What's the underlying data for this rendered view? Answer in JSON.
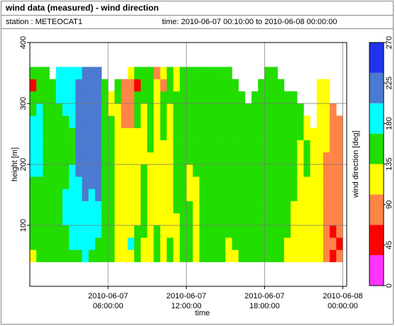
{
  "header": {
    "title": "wind data (measured) - wind direction",
    "station": "station : METEOCAT1",
    "time": "time: 2010-06-07 00:10:00 to 2010-06-08 00:00:00"
  },
  "chart_data": {
    "type": "heatmap",
    "xlabel": "time",
    "ylabel": "height [m]",
    "xlim": [
      0,
      24.3
    ],
    "ylim": [
      0,
      400
    ],
    "xticks": [
      {
        "value": 6,
        "label": [
          "2010-06-07",
          "06:00:00"
        ]
      },
      {
        "value": 12,
        "label": [
          "2010-06-07",
          "12:00:00"
        ]
      },
      {
        "value": 18,
        "label": [
          "2010-06-07",
          "18:00:00"
        ]
      },
      {
        "value": 24,
        "label": [
          "2010-06-08",
          "00:00:00"
        ]
      }
    ],
    "yticks": [
      100,
      200,
      300,
      400
    ],
    "grid": true,
    "x": [
      0,
      0.5,
      1,
      1.5,
      2,
      2.5,
      3,
      3.5,
      4,
      4.5,
      5,
      5.5,
      6,
      6.5,
      7,
      7.5,
      8,
      8.5,
      9,
      9.5,
      10,
      10.5,
      11,
      11.5,
      12,
      12.5,
      13,
      13.5,
      14,
      14.5,
      15,
      15.5,
      16,
      16.5,
      17,
      17.5,
      18,
      18.5,
      19,
      19.5,
      20,
      20.5,
      21,
      21.5,
      22,
      22.5,
      23,
      23.5
    ],
    "y": [
      40,
      60,
      80,
      100,
      120,
      140,
      160,
      180,
      200,
      220,
      240,
      260,
      280,
      300,
      320,
      340
    ],
    "z": [
      [
        120,
        150,
        150,
        150,
        150,
        150,
        150,
        190,
        190,
        190,
        190,
        190,
        150,
        150,
        50,
        150
      ],
      [
        150,
        150,
        150,
        150,
        150,
        150,
        150,
        190,
        190,
        190,
        190,
        190,
        190,
        150,
        150,
        150
      ],
      [
        150,
        150,
        150,
        150,
        150,
        150,
        150,
        150,
        150,
        150,
        150,
        150,
        150,
        150,
        150,
        150
      ],
      [
        150,
        150,
        150,
        150,
        150,
        150,
        150,
        150,
        150,
        150,
        150,
        150,
        150,
        150,
        150,
        null
      ],
      [
        150,
        150,
        150,
        150,
        150,
        150,
        150,
        150,
        150,
        150,
        150,
        150,
        150,
        190,
        190,
        190
      ],
      [
        150,
        150,
        150,
        190,
        190,
        190,
        150,
        150,
        150,
        150,
        150,
        150,
        190,
        190,
        190,
        190
      ],
      [
        150,
        190,
        190,
        190,
        190,
        190,
        190,
        190,
        150,
        150,
        150,
        190,
        190,
        190,
        190,
        190
      ],
      [
        150,
        190,
        190,
        190,
        190,
        190,
        190,
        220,
        220,
        220,
        220,
        220,
        220,
        220,
        220,
        190
      ],
      [
        190,
        190,
        190,
        190,
        190,
        220,
        220,
        220,
        220,
        220,
        220,
        220,
        220,
        220,
        220,
        220
      ],
      [
        150,
        190,
        190,
        190,
        190,
        190,
        220,
        220,
        220,
        220,
        220,
        220,
        220,
        220,
        220,
        220
      ],
      [
        150,
        150,
        190,
        190,
        190,
        220,
        220,
        220,
        220,
        220,
        220,
        220,
        220,
        220,
        220,
        220
      ],
      [
        150,
        150,
        150,
        150,
        150,
        150,
        150,
        150,
        150,
        150,
        150,
        150,
        150,
        150,
        150,
        null
      ],
      [
        150,
        150,
        150,
        150,
        150,
        150,
        150,
        150,
        150,
        150,
        150,
        150,
        120,
        120,
        null,
        null
      ],
      [
        120,
        120,
        120,
        120,
        120,
        120,
        120,
        120,
        120,
        120,
        120,
        120,
        120,
        150,
        150,
        null
      ],
      [
        120,
        120,
        120,
        120,
        120,
        120,
        120,
        120,
        120,
        120,
        120,
        80,
        80,
        80,
        80,
        null
      ],
      [
        120,
        190,
        120,
        120,
        120,
        120,
        120,
        120,
        120,
        120,
        120,
        80,
        80,
        80,
        80,
        120
      ],
      [
        150,
        150,
        150,
        120,
        120,
        120,
        120,
        120,
        120,
        120,
        120,
        150,
        150,
        150,
        50,
        150
      ],
      [
        120,
        120,
        150,
        150,
        150,
        150,
        150,
        150,
        120,
        120,
        120,
        120,
        120,
        150,
        150,
        150
      ],
      [
        120,
        120,
        120,
        120,
        120,
        120,
        120,
        120,
        120,
        150,
        150,
        150,
        150,
        150,
        150,
        150
      ],
      [
        150,
        150,
        150,
        120,
        120,
        120,
        120,
        120,
        120,
        120,
        120,
        120,
        120,
        120,
        120,
        80
      ],
      [
        120,
        120,
        120,
        120,
        120,
        120,
        120,
        120,
        120,
        120,
        150,
        150,
        150,
        150,
        80,
        120
      ],
      [
        150,
        150,
        120,
        120,
        120,
        120,
        120,
        120,
        120,
        120,
        120,
        120,
        120,
        150,
        150,
        150
      ],
      [
        120,
        120,
        120,
        120,
        150,
        150,
        150,
        150,
        150,
        150,
        150,
        150,
        150,
        150,
        120,
        120
      ],
      [
        150,
        150,
        150,
        150,
        150,
        150,
        150,
        150,
        150,
        150,
        150,
        150,
        150,
        150,
        150,
        150
      ],
      [
        150,
        150,
        150,
        150,
        150,
        120,
        120,
        120,
        150,
        150,
        150,
        150,
        150,
        150,
        150,
        150
      ],
      [
        120,
        120,
        120,
        120,
        120,
        120,
        120,
        150,
        150,
        150,
        150,
        150,
        150,
        150,
        150,
        150
      ],
      [
        150,
        150,
        150,
        150,
        150,
        150,
        150,
        150,
        150,
        150,
        150,
        150,
        150,
        150,
        150,
        150
      ],
      [
        150,
        150,
        150,
        150,
        150,
        150,
        150,
        150,
        150,
        150,
        150,
        150,
        150,
        150,
        150,
        150
      ],
      [
        150,
        150,
        150,
        150,
        150,
        150,
        150,
        150,
        150,
        150,
        150,
        150,
        150,
        150,
        150,
        150
      ],
      [
        150,
        150,
        150,
        150,
        150,
        150,
        150,
        150,
        150,
        150,
        150,
        150,
        150,
        150,
        150,
        150
      ],
      [
        120,
        120,
        150,
        150,
        150,
        150,
        150,
        150,
        150,
        150,
        150,
        150,
        150,
        150,
        150,
        150
      ],
      [
        120,
        150,
        150,
        150,
        150,
        150,
        150,
        150,
        150,
        150,
        150,
        150,
        150,
        150,
        150,
        null
      ],
      [
        150,
        150,
        150,
        150,
        150,
        150,
        150,
        150,
        150,
        150,
        150,
        150,
        150,
        150,
        null,
        null
      ],
      [
        150,
        150,
        150,
        150,
        150,
        150,
        150,
        150,
        150,
        150,
        150,
        150,
        150,
        null,
        null,
        null
      ],
      [
        150,
        150,
        150,
        150,
        150,
        150,
        150,
        150,
        150,
        150,
        150,
        150,
        150,
        150,
        null,
        null
      ],
      [
        150,
        150,
        150,
        150,
        150,
        150,
        150,
        150,
        150,
        150,
        150,
        150,
        150,
        150,
        150,
        null
      ],
      [
        150,
        150,
        150,
        150,
        150,
        150,
        150,
        150,
        150,
        150,
        150,
        150,
        150,
        150,
        150,
        150
      ],
      [
        150,
        150,
        150,
        150,
        150,
        150,
        150,
        150,
        150,
        150,
        150,
        150,
        150,
        150,
        150,
        150
      ],
      [
        150,
        150,
        150,
        150,
        150,
        150,
        150,
        150,
        150,
        150,
        150,
        150,
        150,
        150,
        150,
        null
      ],
      [
        120,
        120,
        150,
        150,
        150,
        150,
        150,
        150,
        150,
        150,
        150,
        150,
        150,
        150,
        null,
        null
      ],
      [
        120,
        120,
        120,
        120,
        120,
        150,
        150,
        150,
        150,
        150,
        150,
        150,
        150,
        150,
        null,
        null
      ],
      [
        120,
        120,
        120,
        120,
        120,
        120,
        120,
        120,
        120,
        120,
        150,
        150,
        150,
        null,
        null,
        null
      ],
      [
        120,
        120,
        120,
        120,
        120,
        120,
        120,
        150,
        150,
        150,
        120,
        120,
        null,
        null,
        null,
        null
      ],
      [
        120,
        120,
        120,
        120,
        120,
        120,
        120,
        120,
        120,
        120,
        120,
        null,
        null,
        null,
        null,
        null
      ],
      [
        120,
        120,
        120,
        120,
        120,
        120,
        120,
        120,
        120,
        120,
        120,
        120,
        120,
        120,
        120,
        null
      ],
      [
        80,
        80,
        80,
        80,
        80,
        80,
        80,
        80,
        80,
        120,
        120,
        120,
        120,
        120,
        120,
        null
      ],
      [
        50,
        80,
        50,
        80,
        80,
        80,
        80,
        80,
        80,
        80,
        80,
        80,
        80,
        null,
        null,
        null
      ],
      [
        80,
        50,
        80,
        80,
        80,
        80,
        80,
        80,
        80,
        80,
        80,
        80,
        null,
        null,
        null,
        null
      ]
    ],
    "colorbar": {
      "label": "wind direction [deg]",
      "lim": [
        0,
        270
      ],
      "ticks": [
        0,
        45,
        90,
        135,
        180,
        225,
        270
      ],
      "bins": [
        0,
        33.75,
        67.5,
        101.25,
        135,
        168.75,
        202.5,
        236.25,
        270
      ],
      "colors": [
        "#ff33ff",
        "#ff0000",
        "#ff8447",
        "#ffff00",
        "#22dd00",
        "#00ffff",
        "#4a7bd0",
        "#2233ee"
      ]
    }
  }
}
